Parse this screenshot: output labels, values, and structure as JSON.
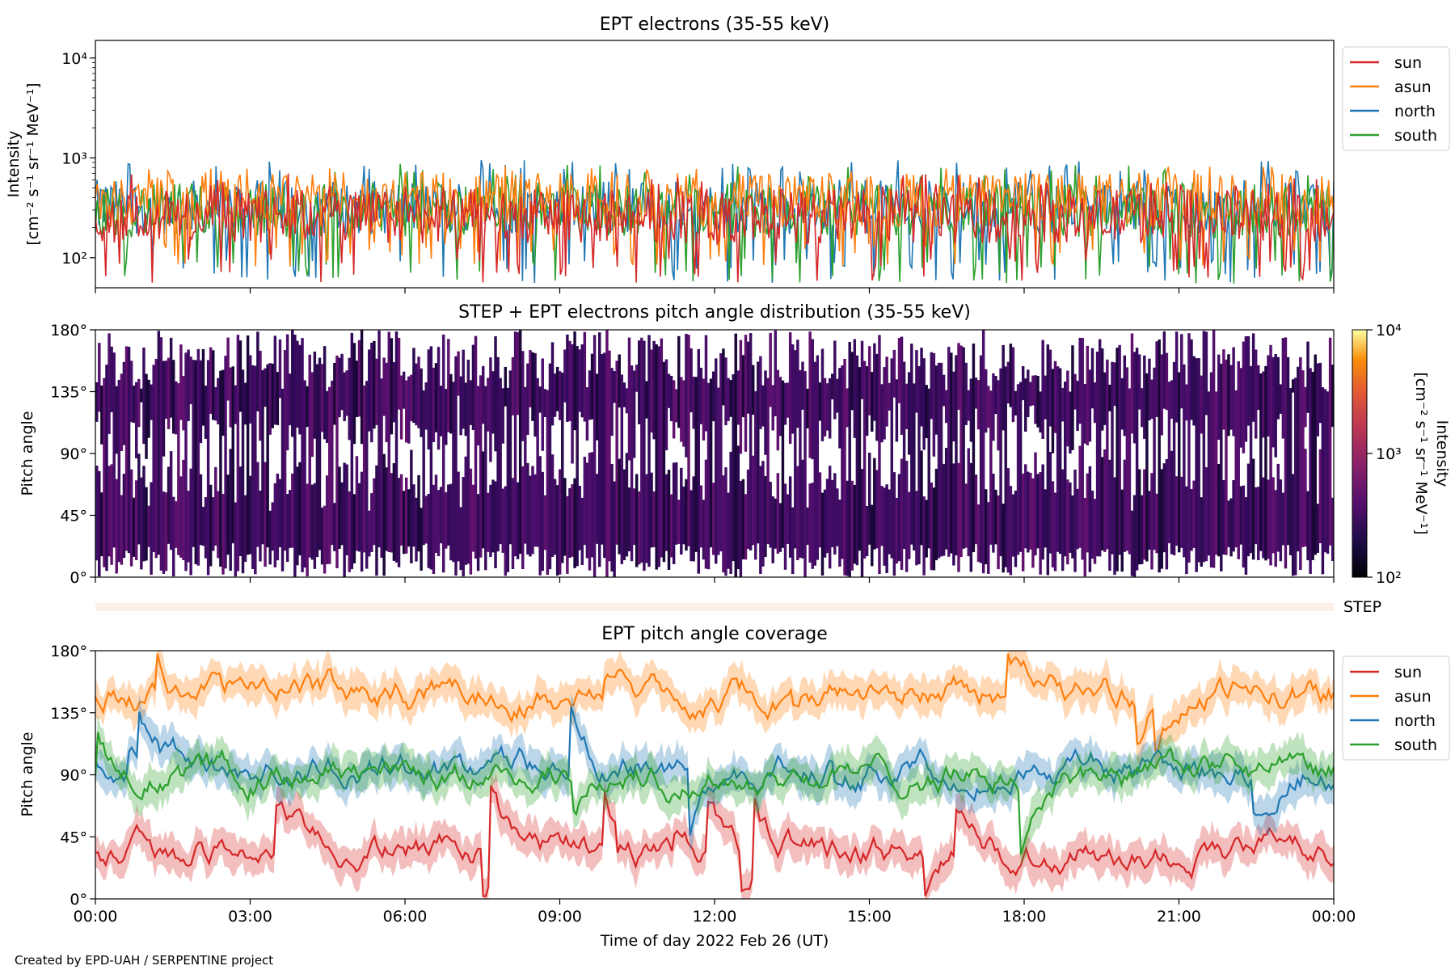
{
  "credit": "Created by EPD-UAH / SERPENTINE project",
  "chart_data": [
    {
      "type": "line",
      "title": "EPT electrons (35-55 keV)",
      "ylabel": "Intensity",
      "ylabel_units": "[cm⁻² s⁻¹ sr⁻¹ MeV⁻¹]",
      "yscale": "log",
      "ylim": [
        50,
        15000
      ],
      "yticks": [
        "10²",
        "10³",
        "10⁴"
      ],
      "ytick_values": [
        100,
        1000,
        10000
      ],
      "xlim": [
        "00:00",
        "24:00"
      ],
      "legend_position": "outside-right-top",
      "series": [
        {
          "name": "sun",
          "color": "#d62728",
          "typical": 260,
          "min": 55,
          "max": 700
        },
        {
          "name": "asun",
          "color": "#ff7f0e",
          "typical": 380,
          "min": 80,
          "max": 850
        },
        {
          "name": "north",
          "color": "#1f77b4",
          "typical": 320,
          "min": 55,
          "max": 950
        },
        {
          "name": "south",
          "color": "#2ca02c",
          "typical": 300,
          "min": 55,
          "max": 900
        }
      ]
    },
    {
      "type": "heatmap",
      "title": "STEP + EPT electrons pitch angle distribution (35-55 keV)",
      "ylabel": "Pitch angle",
      "ylim": [
        0,
        180
      ],
      "yticks": [
        "0°",
        "45°",
        "90°",
        "135°",
        "180°"
      ],
      "ytick_values": [
        0,
        45,
        90,
        135,
        180
      ],
      "xlim": [
        "00:00",
        "24:00"
      ],
      "colorbar": {
        "label": "Intensity",
        "units": "[cm⁻² s⁻¹ sr⁻¹ MeV⁻¹]",
        "scale": "log",
        "range": [
          100,
          10000
        ],
        "ticks": [
          "10²",
          "10³",
          "10⁴"
        ],
        "colormap": "inferno"
      }
    },
    {
      "type": "band",
      "label": "STEP",
      "color": "#fdeee8"
    },
    {
      "type": "line",
      "title": "EPT pitch angle coverage",
      "ylabel": "Pitch angle",
      "xlabel": "Time of day 2022 Feb 26 (UT)",
      "ylim": [
        0,
        180
      ],
      "yticks": [
        "0°",
        "45°",
        "90°",
        "135°",
        "180°"
      ],
      "ytick_values": [
        0,
        45,
        90,
        135,
        180
      ],
      "xticks": [
        "00:00",
        "03:00",
        "06:00",
        "09:00",
        "12:00",
        "15:00",
        "18:00",
        "21:00",
        "00:00"
      ],
      "xlim": [
        "00:00",
        "24:00"
      ],
      "legend_position": "outside-right-top",
      "series": [
        {
          "name": "sun",
          "color": "#d62728",
          "typical_deg": 35
        },
        {
          "name": "asun",
          "color": "#ff7f0e",
          "typical_deg": 150
        },
        {
          "name": "north",
          "color": "#1f77b4",
          "typical_deg": 95
        },
        {
          "name": "south",
          "color": "#2ca02c",
          "typical_deg": 90
        }
      ]
    }
  ]
}
